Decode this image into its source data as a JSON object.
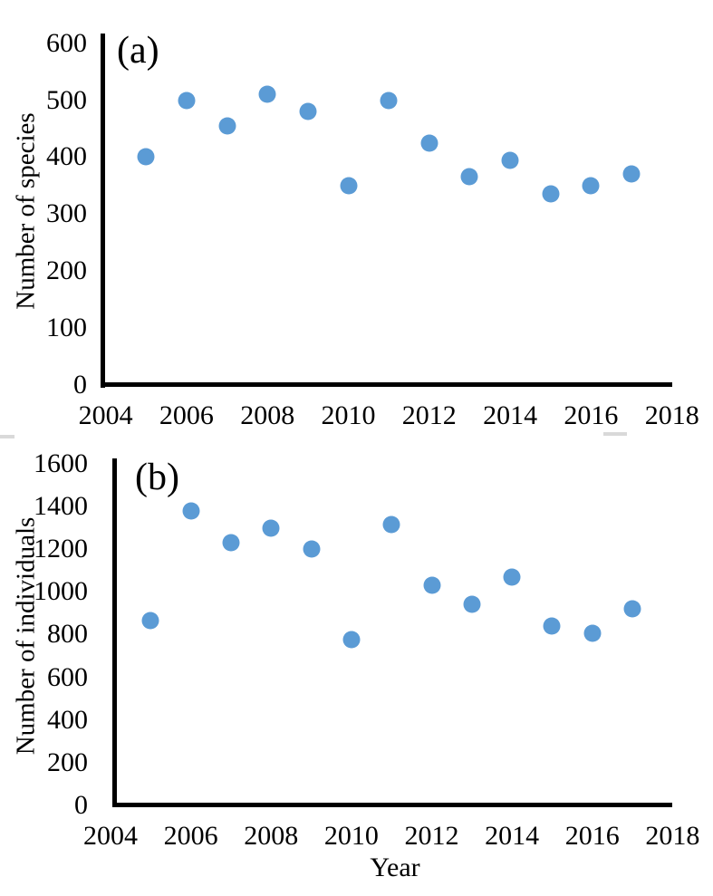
{
  "figure": {
    "background": "#ffffff",
    "marker_color": "#5b9bd5",
    "axis_color": "#000000"
  },
  "chart_data": [
    {
      "type": "scatter",
      "panel": "(a)",
      "title": "",
      "xlabel": "",
      "ylabel": "Number of species",
      "xlim": [
        2004,
        2018
      ],
      "ylim": [
        0,
        600
      ],
      "grid": false,
      "legend": "none",
      "marker_color": "#5b9bd5",
      "x": [
        2005,
        2006,
        2007,
        2008,
        2009,
        2010,
        2011,
        2012,
        2013,
        2014,
        2015,
        2016,
        2017
      ],
      "y": [
        400,
        500,
        455,
        510,
        480,
        350,
        500,
        425,
        365,
        395,
        335,
        350,
        370
      ],
      "x_tick_labels": [
        "2004",
        "2006",
        "2008",
        "2010",
        "2012",
        "2014",
        "2016",
        "2018"
      ],
      "x_tick_values": [
        2004,
        2006,
        2008,
        2010,
        2012,
        2014,
        2016,
        2018
      ],
      "y_tick_labels": [
        "0",
        "100",
        "200",
        "300",
        "400",
        "500",
        "600"
      ],
      "y_tick_values": [
        0,
        100,
        200,
        300,
        400,
        500,
        600
      ]
    },
    {
      "type": "scatter",
      "panel": "(b)",
      "title": "",
      "xlabel": "Year",
      "ylabel": "Number of individuals",
      "xlim": [
        2004,
        2018
      ],
      "ylim": [
        0,
        1600
      ],
      "grid": false,
      "legend": "none",
      "marker_color": "#5b9bd5",
      "x": [
        2005,
        2006,
        2007,
        2008,
        2009,
        2010,
        2011,
        2012,
        2013,
        2014,
        2015,
        2016,
        2017
      ],
      "y": [
        865,
        1380,
        1230,
        1300,
        1200,
        775,
        1315,
        1030,
        940,
        1070,
        840,
        805,
        920
      ],
      "x_tick_labels": [
        "2004",
        "2006",
        "2008",
        "2010",
        "2012",
        "2014",
        "2016",
        "2018"
      ],
      "x_tick_values": [
        2004,
        2006,
        2008,
        2010,
        2012,
        2014,
        2016,
        2018
      ],
      "y_tick_labels": [
        "0",
        "200",
        "400",
        "600",
        "800",
        "1000",
        "1200",
        "1400",
        "1600"
      ],
      "y_tick_values": [
        0,
        200,
        400,
        600,
        800,
        1000,
        1200,
        1400,
        1600
      ]
    }
  ]
}
